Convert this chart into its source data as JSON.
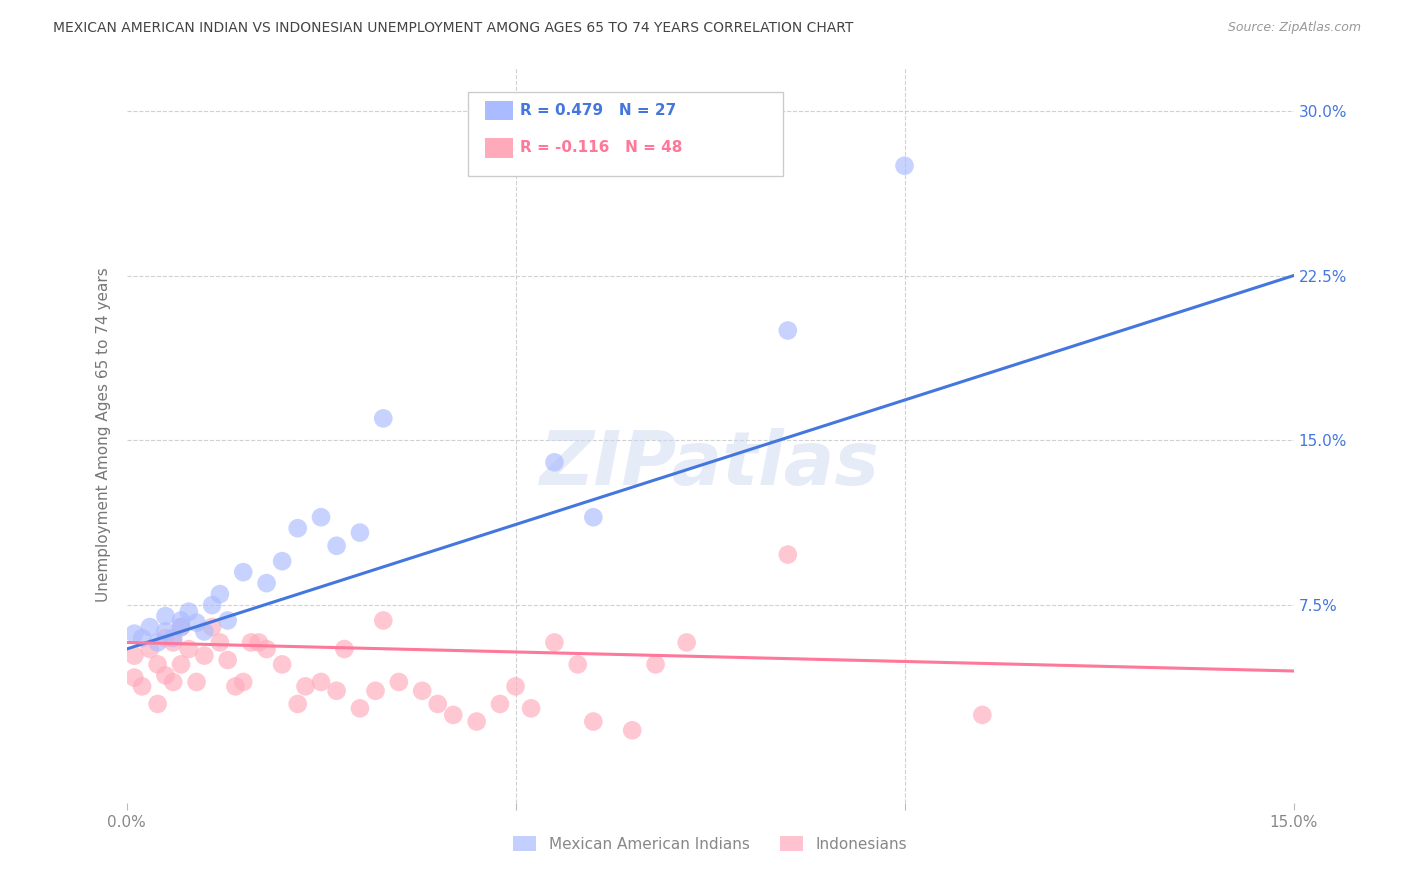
{
  "title": "MEXICAN AMERICAN INDIAN VS INDONESIAN UNEMPLOYMENT AMONG AGES 65 TO 74 YEARS CORRELATION CHART",
  "source": "Source: ZipAtlas.com",
  "ylabel": "Unemployment Among Ages 65 to 74 years",
  "xlim": [
    0.0,
    0.15
  ],
  "ylim": [
    -0.015,
    0.32
  ],
  "xtick_positions": [
    0.0,
    0.05,
    0.1,
    0.15
  ],
  "xtick_labels": [
    "0.0%",
    "",
    "",
    "15.0%"
  ],
  "ytick_positions": [
    0.075,
    0.15,
    0.225,
    0.3
  ],
  "ytick_labels": [
    "7.5%",
    "15.0%",
    "22.5%",
    "30.0%"
  ],
  "grid_color": "#cccccc",
  "background_color": "#ffffff",
  "legend_r1": "R = 0.479   N = 27",
  "legend_r2": "R = -0.116   N = 48",
  "legend_label1": "Mexican American Indians",
  "legend_label2": "Indonesians",
  "blue_scatter": "#aabbff",
  "pink_scatter": "#ffaabb",
  "blue_line": "#4477dd",
  "pink_line": "#ff7799",
  "blue_text": "#4477dd",
  "pink_text": "#ff7799",
  "ytick_color": "#4477dd",
  "mai_x": [
    0.001,
    0.002,
    0.003,
    0.004,
    0.005,
    0.005,
    0.006,
    0.007,
    0.007,
    0.008,
    0.009,
    0.01,
    0.011,
    0.012,
    0.013,
    0.015,
    0.018,
    0.02,
    0.022,
    0.025,
    0.027,
    0.03,
    0.033,
    0.055,
    0.06,
    0.085,
    0.1
  ],
  "mai_y": [
    0.062,
    0.06,
    0.065,
    0.058,
    0.063,
    0.07,
    0.06,
    0.065,
    0.068,
    0.072,
    0.067,
    0.063,
    0.075,
    0.08,
    0.068,
    0.09,
    0.085,
    0.095,
    0.11,
    0.115,
    0.102,
    0.108,
    0.16,
    0.14,
    0.115,
    0.2,
    0.275
  ],
  "ind_x": [
    0.001,
    0.001,
    0.002,
    0.003,
    0.004,
    0.004,
    0.005,
    0.005,
    0.006,
    0.006,
    0.007,
    0.007,
    0.008,
    0.009,
    0.01,
    0.011,
    0.012,
    0.013,
    0.014,
    0.015,
    0.016,
    0.017,
    0.018,
    0.02,
    0.022,
    0.023,
    0.025,
    0.027,
    0.028,
    0.03,
    0.032,
    0.033,
    0.035,
    0.038,
    0.04,
    0.042,
    0.045,
    0.048,
    0.05,
    0.052,
    0.055,
    0.058,
    0.06,
    0.065,
    0.068,
    0.072,
    0.085,
    0.11
  ],
  "ind_y": [
    0.052,
    0.042,
    0.038,
    0.055,
    0.048,
    0.03,
    0.06,
    0.043,
    0.058,
    0.04,
    0.065,
    0.048,
    0.055,
    0.04,
    0.052,
    0.065,
    0.058,
    0.05,
    0.038,
    0.04,
    0.058,
    0.058,
    0.055,
    0.048,
    0.03,
    0.038,
    0.04,
    0.036,
    0.055,
    0.028,
    0.036,
    0.068,
    0.04,
    0.036,
    0.03,
    0.025,
    0.022,
    0.03,
    0.038,
    0.028,
    0.058,
    0.048,
    0.022,
    0.018,
    0.048,
    0.058,
    0.098,
    0.025
  ],
  "mai_line_x": [
    0.0,
    0.15
  ],
  "mai_line_y": [
    0.055,
    0.225
  ],
  "ind_line_x": [
    0.0,
    0.15
  ],
  "ind_line_y": [
    0.058,
    0.045
  ]
}
